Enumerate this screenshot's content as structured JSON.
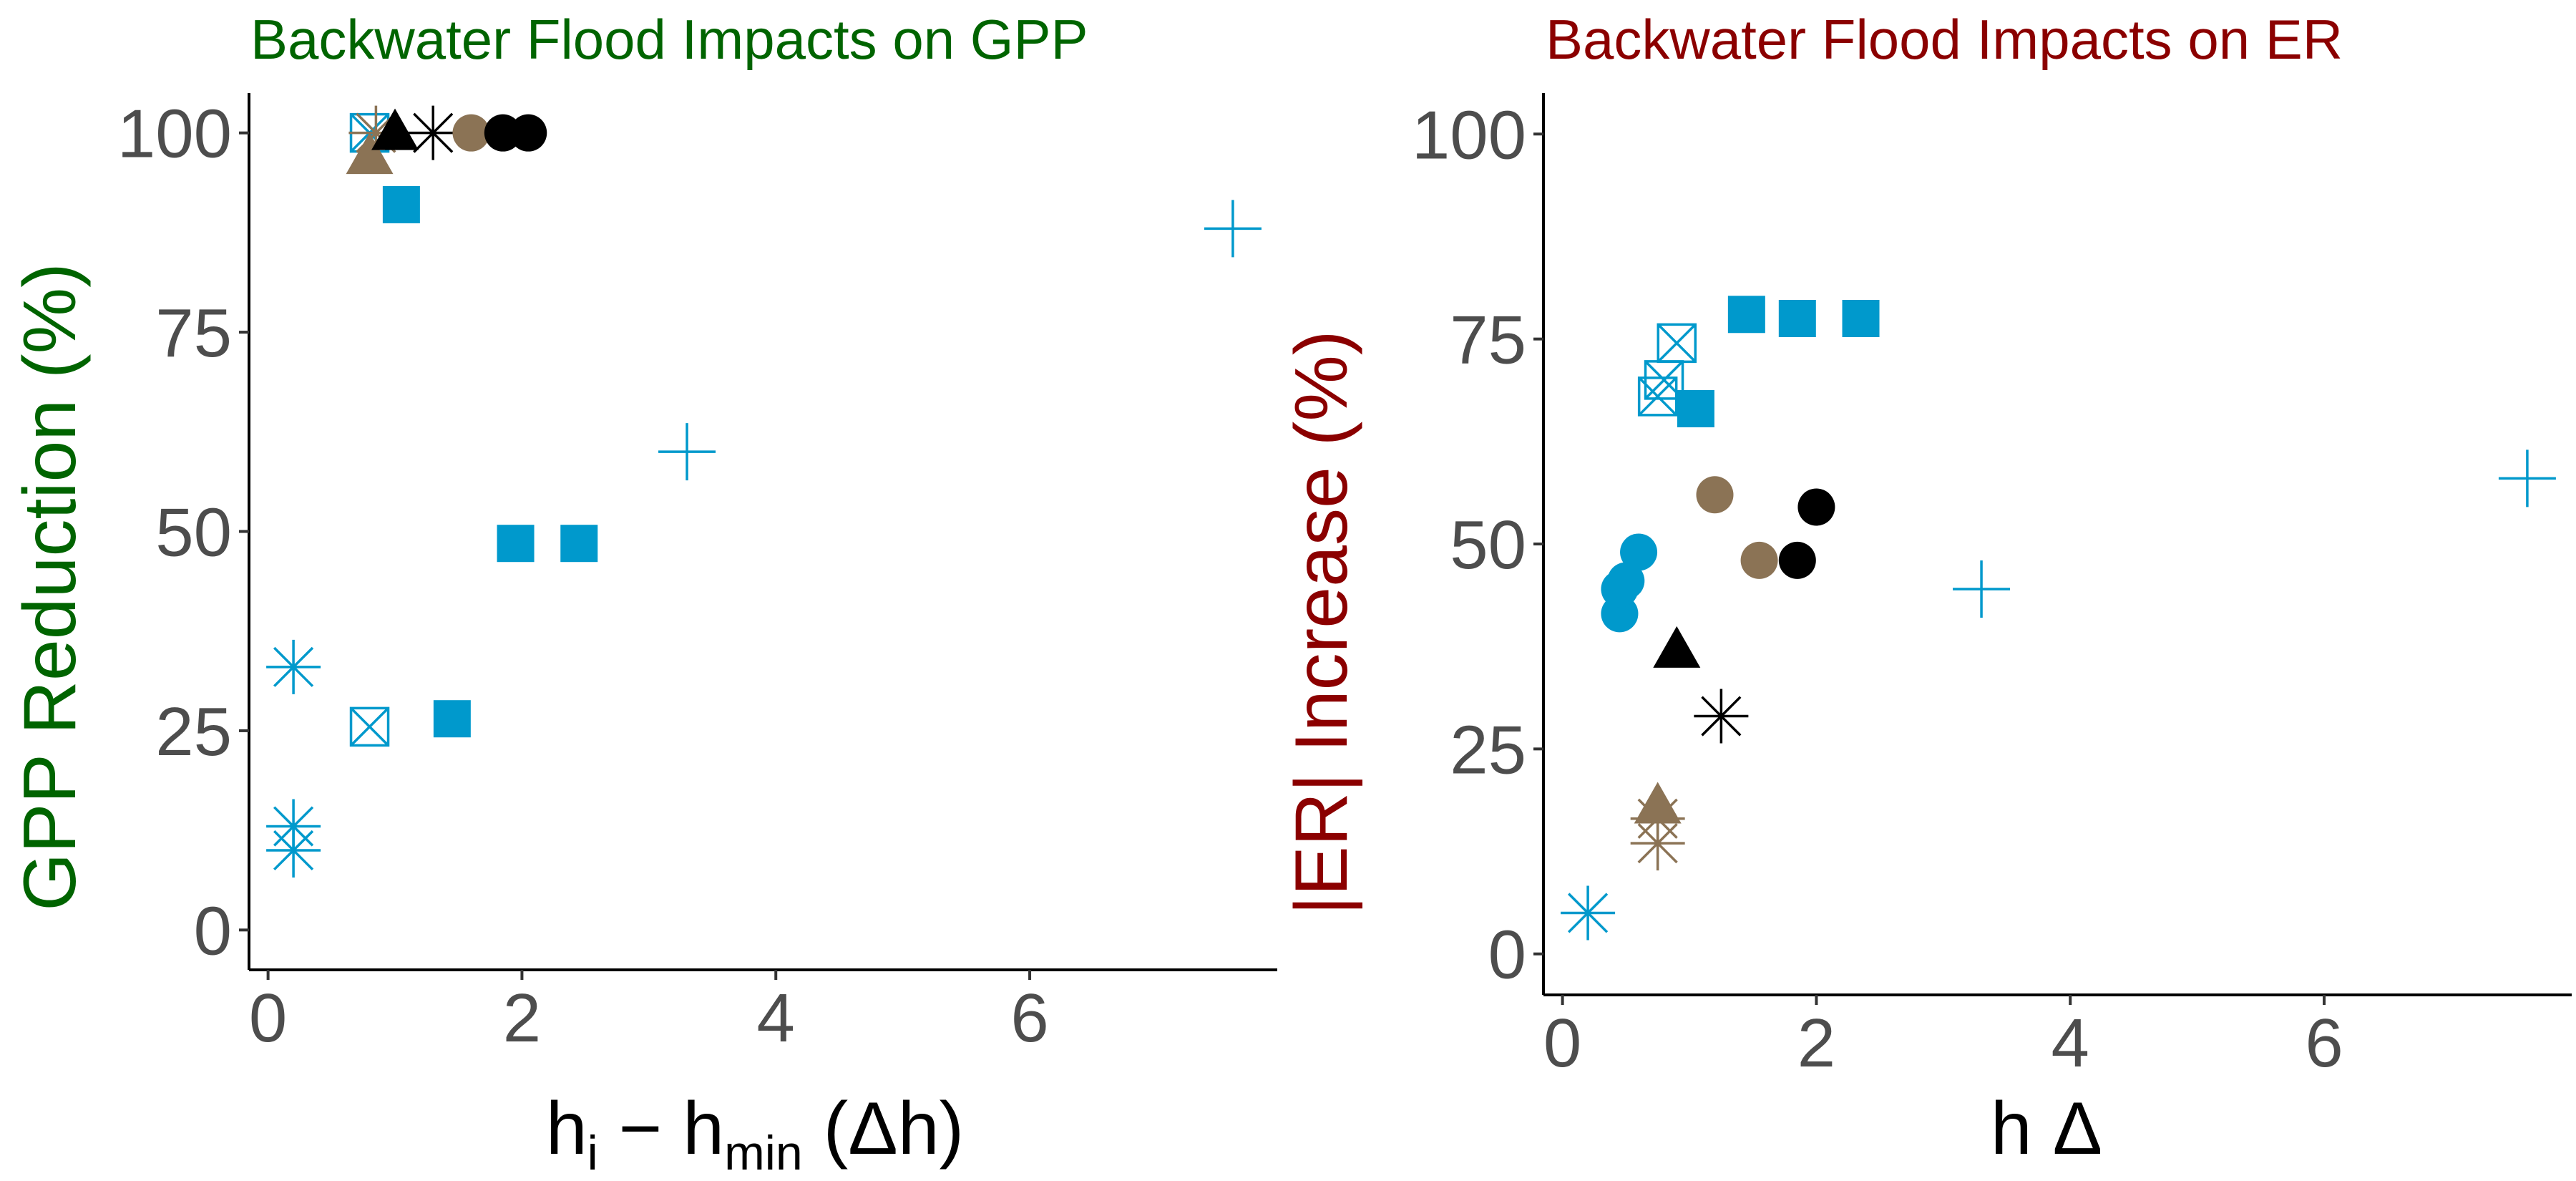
{
  "chart_data": [
    {
      "type": "scatter",
      "title": "Backwater Flood Impacts on GPP",
      "xlabel": {
        "base": "h",
        "sub1": "i",
        "mid": " − h",
        "sub2": "min",
        "tail": " (Δh)"
      },
      "ylabel": "GPP Reduction (%)",
      "xlim": [
        -0.15,
        7.95
      ],
      "ylim": [
        -5,
        105
      ],
      "xticks": [
        0,
        2,
        4,
        6
      ],
      "yticks": [
        0,
        25,
        50,
        75,
        100
      ],
      "grid": false,
      "colors": {
        "title": "#006400",
        "blue": "#0099cc",
        "brown": "#8b7355",
        "black": "#000000"
      },
      "points": [
        {
          "x": 0.2,
          "y": 33,
          "shape": "asterisk",
          "color": "blue"
        },
        {
          "x": 0.2,
          "y": 13,
          "shape": "asterisk",
          "color": "blue"
        },
        {
          "x": 0.2,
          "y": 10,
          "shape": "asterisk",
          "color": "blue"
        },
        {
          "x": 0.8,
          "y": 25.5,
          "shape": "boxx",
          "color": "blue"
        },
        {
          "x": 1.45,
          "y": 26.5,
          "shape": "square",
          "color": "blue"
        },
        {
          "x": 1.95,
          "y": 48.5,
          "shape": "square",
          "color": "blue"
        },
        {
          "x": 2.45,
          "y": 48.5,
          "shape": "square",
          "color": "blue"
        },
        {
          "x": 3.3,
          "y": 60,
          "shape": "plus",
          "color": "blue"
        },
        {
          "x": 7.6,
          "y": 88,
          "shape": "plus",
          "color": "blue"
        },
        {
          "x": 1.05,
          "y": 91,
          "shape": "square",
          "color": "blue"
        },
        {
          "x": 0.8,
          "y": 100,
          "shape": "boxx",
          "color": "blue"
        },
        {
          "x": 0.85,
          "y": 100,
          "shape": "asterisk",
          "color": "brown"
        },
        {
          "x": 0.8,
          "y": 97,
          "shape": "triangle",
          "color": "brown"
        },
        {
          "x": 1.0,
          "y": 100,
          "shape": "triangle",
          "color": "black"
        },
        {
          "x": 1.3,
          "y": 100,
          "shape": "asterisk",
          "color": "black"
        },
        {
          "x": 1.6,
          "y": 100,
          "shape": "circle",
          "color": "brown"
        },
        {
          "x": 1.85,
          "y": 100,
          "shape": "circle",
          "color": "black"
        },
        {
          "x": 2.05,
          "y": 100,
          "shape": "circle",
          "color": "black"
        }
      ]
    },
    {
      "type": "scatter",
      "title": "Backwater Flood Impacts on ER",
      "xlabel": {
        "base": "h Δ"
      },
      "ylabel": "|ER| Increase (%)",
      "xlim": [
        -0.15,
        7.95
      ],
      "ylim": [
        -5,
        105
      ],
      "xticks": [
        0,
        2,
        4,
        6
      ],
      "yticks": [
        0,
        25,
        50,
        75,
        100
      ],
      "grid": false,
      "colors": {
        "title": "#8b0000",
        "blue": "#0099cc",
        "brown": "#8b7355",
        "black": "#000000"
      },
      "points": [
        {
          "x": 0.2,
          "y": 5,
          "shape": "asterisk",
          "color": "blue"
        },
        {
          "x": 0.45,
          "y": 41.5,
          "shape": "circle",
          "color": "blue"
        },
        {
          "x": 0.45,
          "y": 44.5,
          "shape": "circle",
          "color": "blue"
        },
        {
          "x": 0.5,
          "y": 45.5,
          "shape": "circle",
          "color": "blue"
        },
        {
          "x": 0.6,
          "y": 49,
          "shape": "circle",
          "color": "blue"
        },
        {
          "x": 0.75,
          "y": 68,
          "shape": "boxx",
          "color": "blue"
        },
        {
          "x": 0.8,
          "y": 70,
          "shape": "boxx",
          "color": "blue"
        },
        {
          "x": 0.9,
          "y": 74.5,
          "shape": "boxx",
          "color": "blue"
        },
        {
          "x": 1.05,
          "y": 66.5,
          "shape": "square",
          "color": "blue"
        },
        {
          "x": 1.45,
          "y": 78,
          "shape": "square",
          "color": "blue"
        },
        {
          "x": 1.85,
          "y": 77.5,
          "shape": "square",
          "color": "blue"
        },
        {
          "x": 2.35,
          "y": 77.5,
          "shape": "square",
          "color": "blue"
        },
        {
          "x": 3.3,
          "y": 44.5,
          "shape": "plus",
          "color": "blue"
        },
        {
          "x": 7.6,
          "y": 58,
          "shape": "plus",
          "color": "blue"
        },
        {
          "x": 0.75,
          "y": 13.5,
          "shape": "asterisk",
          "color": "brown"
        },
        {
          "x": 0.75,
          "y": 16.5,
          "shape": "asterisk",
          "color": "brown"
        },
        {
          "x": 0.75,
          "y": 18,
          "shape": "triangle",
          "color": "brown"
        },
        {
          "x": 0.9,
          "y": 37,
          "shape": "triangle",
          "color": "black"
        },
        {
          "x": 1.25,
          "y": 29,
          "shape": "asterisk",
          "color": "black"
        },
        {
          "x": 1.2,
          "y": 56,
          "shape": "circle",
          "color": "brown"
        },
        {
          "x": 1.55,
          "y": 48,
          "shape": "circle",
          "color": "brown"
        },
        {
          "x": 1.85,
          "y": 48,
          "shape": "circle",
          "color": "black"
        },
        {
          "x": 2.0,
          "y": 54.5,
          "shape": "circle",
          "color": "black"
        }
      ]
    }
  ]
}
